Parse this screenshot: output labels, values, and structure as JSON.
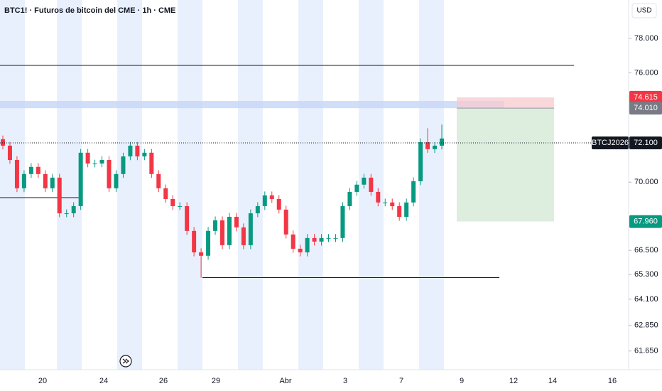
{
  "chart_data": {
    "type": "candlestick",
    "title": "BTC1! · Futuros de bitcoin del CME · 1h · CME",
    "currency": "USD",
    "symbol_label": "BTCJ2026",
    "log_scale": true,
    "ylim": [
      60790,
      80285
    ],
    "yticks": [
      {
        "value": 78000,
        "label": "78.000"
      },
      {
        "value": 76000,
        "label": "76.000"
      },
      {
        "value": 70000,
        "label": "70.000"
      },
      {
        "value": 66500,
        "label": "66.500"
      },
      {
        "value": 65300,
        "label": "65.300"
      },
      {
        "value": 64100,
        "label": "64.100"
      },
      {
        "value": 62850,
        "label": "62.850"
      },
      {
        "value": 61650,
        "label": "61.650"
      }
    ],
    "x_labels": [
      "20",
      "24",
      "26",
      "29",
      "Abr",
      "3",
      "7",
      "9",
      "12",
      "14",
      "16"
    ],
    "up_color": "#089981",
    "down_color": "#f23645",
    "open": [
      72300,
      71950,
      71180,
      69680,
      70430,
      70810,
      70430,
      69680,
      70240,
      68380,
      68380,
      68750,
      71570,
      70990,
      70990,
      71180,
      69680,
      70430,
      71370,
      71950,
      71370,
      71570,
      70430,
      69680,
      69120,
      68750,
      68750,
      67480,
      66400,
      66230,
      67480,
      68020,
      66760,
      68200,
      67660,
      66760,
      68380,
      68750,
      69310,
      69120,
      68570,
      67300,
      66580,
      66400,
      67120,
      66940,
      67120,
      67120,
      67120,
      68750,
      69490,
      69870,
      70240,
      69490,
      68940,
      68940,
      68750,
      68200,
      68940,
      70050,
      72140,
      71760,
      71950
    ],
    "high": [
      72500,
      72150,
      71380,
      70630,
      71010,
      71010,
      70630,
      70440,
      70440,
      68580,
      68950,
      71770,
      71770,
      71190,
      71380,
      71380,
      70630,
      71570,
      72150,
      72150,
      71770,
      71770,
      70630,
      69880,
      69320,
      68950,
      68950,
      67680,
      66600,
      67680,
      68220,
      68220,
      68400,
      68400,
      67860,
      68580,
      68950,
      69510,
      69510,
      69320,
      68770,
      67500,
      66780,
      67320,
      67320,
      67320,
      67320,
      67320,
      68950,
      69690,
      70070,
      70440,
      70440,
      69690,
      69140,
      69140,
      68950,
      69140,
      70250,
      72340,
      72900,
      72150,
      73100
    ],
    "low": [
      71750,
      70980,
      69480,
      69480,
      70230,
      70230,
      69480,
      69480,
      68180,
      68180,
      68180,
      68550,
      70790,
      70790,
      70790,
      69480,
      69480,
      70230,
      71170,
      71170,
      71170,
      70230,
      69480,
      68920,
      68550,
      68550,
      67280,
      66200,
      65150,
      66030,
      67280,
      66560,
      66560,
      67460,
      66560,
      66560,
      68180,
      68550,
      68920,
      68370,
      67100,
      66380,
      66200,
      66200,
      66740,
      66740,
      66920,
      66920,
      66920,
      68550,
      69290,
      69670,
      69290,
      68740,
      68740,
      68550,
      68000,
      68000,
      68740,
      69850,
      71560,
      71560,
      71750
    ],
    "close": [
      71950,
      71180,
      69680,
      70430,
      70810,
      70430,
      69680,
      70240,
      68380,
      68380,
      68750,
      71570,
      70990,
      70990,
      71180,
      69680,
      70430,
      71370,
      71950,
      71370,
      71570,
      70430,
      69680,
      69120,
      68750,
      68750,
      67480,
      66400,
      66230,
      67480,
      68020,
      66760,
      68200,
      67660,
      66760,
      68380,
      68750,
      69310,
      69120,
      68570,
      67300,
      66580,
      66400,
      67120,
      66940,
      67120,
      67120,
      67120,
      68750,
      69490,
      69870,
      70240,
      69490,
      68940,
      68940,
      68750,
      68200,
      68940,
      70050,
      72140,
      71760,
      71950,
      72340
    ],
    "levels": [
      76430,
      69190,
      65150
    ],
    "zone": [
      74010,
      74410
    ],
    "price_labels": [
      {
        "value": 74615,
        "label": "74.615",
        "color": "#f23645"
      },
      {
        "value": 74010,
        "label": "74.010",
        "color": "#787b86"
      },
      {
        "value": 72100,
        "label": "72.100",
        "color": "#131722"
      },
      {
        "value": 67960,
        "label": "67.960",
        "color": "#089981"
      }
    ]
  }
}
